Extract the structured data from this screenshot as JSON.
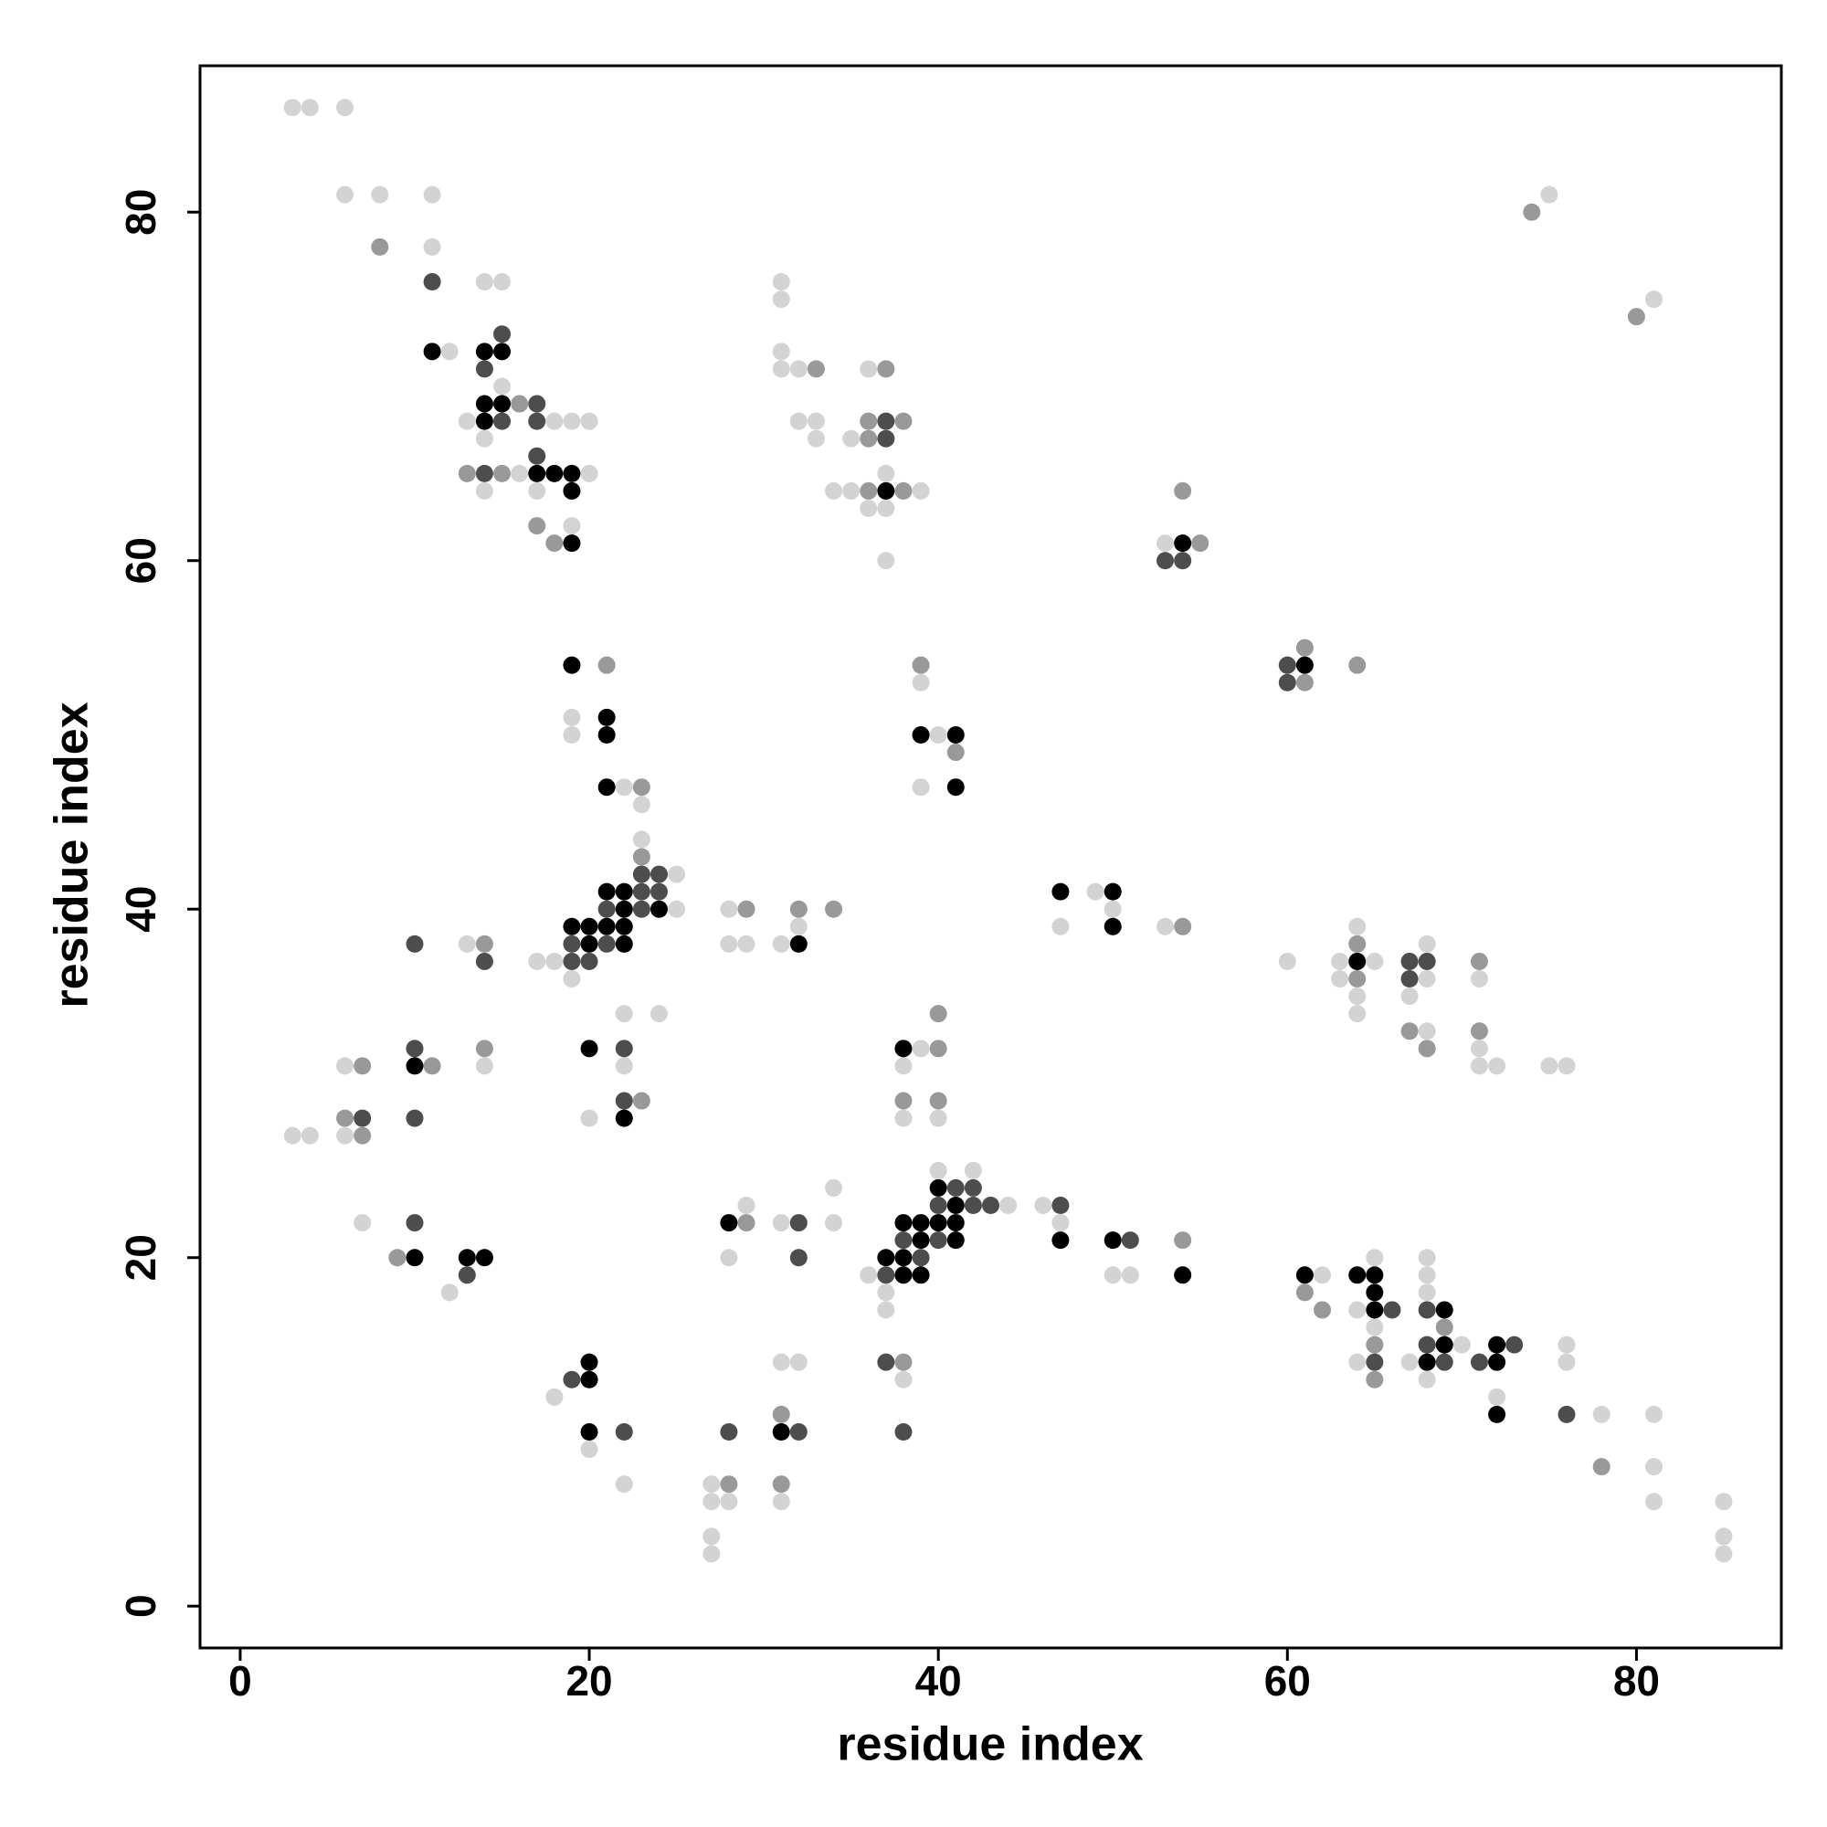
{
  "chart_data": {
    "type": "scatter",
    "xlabel": "residue index",
    "ylabel": "residue index",
    "xlim": [
      -2.3,
      88.3
    ],
    "ylim": [
      -2.4,
      88.4
    ],
    "xticks": [
      0,
      20,
      40,
      60,
      80
    ],
    "yticks": [
      0,
      20,
      40,
      60,
      80
    ],
    "series": [
      {
        "color": "#d3d3d3",
        "x": [
          3,
          4,
          6,
          6,
          8,
          11,
          11,
          14,
          15,
          12,
          15,
          13,
          18,
          19,
          20,
          14,
          16,
          20,
          14,
          17,
          19,
          31,
          31,
          31,
          31,
          32,
          36,
          32,
          33,
          33,
          35,
          37,
          34,
          35,
          39,
          36,
          37,
          37,
          53,
          75,
          81,
          19,
          19,
          22,
          23,
          23,
          25,
          25,
          17,
          18,
          19,
          13,
          28,
          32,
          28,
          29,
          31,
          22,
          24,
          6,
          14,
          22,
          20,
          3,
          4,
          6,
          39,
          40,
          39,
          39,
          38,
          38,
          40,
          49,
          50,
          47,
          53,
          64,
          68,
          60,
          63,
          65,
          63,
          68,
          71,
          64,
          67,
          64,
          68,
          71,
          71,
          72,
          75,
          76,
          40,
          42,
          44,
          46,
          47,
          36,
          50,
          51,
          37,
          37,
          34,
          29,
          7,
          31,
          34,
          28,
          12,
          31,
          32,
          38,
          18,
          20,
          22,
          27,
          27,
          28,
          31,
          27,
          27,
          65,
          68,
          62,
          68,
          68,
          64,
          65,
          70,
          76,
          64,
          67,
          76,
          68,
          72,
          78,
          81,
          81,
          81,
          85,
          85,
          85
        ],
        "y": [
          86,
          86,
          86,
          81,
          81,
          81,
          78,
          76,
          76,
          72,
          70,
          68,
          68,
          68,
          68,
          67,
          65,
          65,
          64,
          64,
          62,
          76,
          75,
          72,
          71,
          71,
          71,
          68,
          68,
          67,
          67,
          65,
          64,
          64,
          64,
          63,
          63,
          60,
          61,
          81,
          75,
          51,
          50,
          47,
          46,
          44,
          42,
          40,
          37,
          37,
          36,
          38,
          40,
          39,
          38,
          38,
          38,
          34,
          34,
          31,
          31,
          31,
          28,
          27,
          27,
          27,
          53,
          50,
          47,
          32,
          31,
          28,
          28,
          41,
          40,
          39,
          39,
          39,
          38,
          37,
          37,
          37,
          36,
          36,
          36,
          35,
          35,
          34,
          33,
          32,
          31,
          31,
          31,
          31,
          25,
          25,
          23,
          23,
          22,
          19,
          19,
          19,
          18,
          17,
          24,
          23,
          22,
          22,
          22,
          20,
          18,
          14,
          14,
          13,
          12,
          9,
          7,
          7,
          6,
          6,
          6,
          4,
          3,
          20,
          20,
          19,
          19,
          18,
          17,
          16,
          15,
          15,
          14,
          14,
          14,
          13,
          12,
          11,
          11,
          8,
          6,
          6,
          4,
          3
        ]
      },
      {
        "color": "#999999",
        "x": [
          8,
          16,
          13,
          15,
          17,
          18,
          33,
          37,
          36,
          38,
          36,
          36,
          38,
          54,
          55,
          61,
          64,
          61,
          74,
          80,
          21,
          23,
          23,
          14,
          29,
          32,
          34,
          14,
          7,
          11,
          23,
          6,
          7,
          39,
          41,
          40,
          40,
          38,
          40,
          54,
          64,
          71,
          64,
          67,
          71,
          68,
          29,
          9,
          38,
          31,
          28,
          31,
          54,
          61,
          62,
          69,
          65,
          65,
          78
        ],
        "y": [
          78,
          69,
          65,
          65,
          62,
          61,
          71,
          71,
          68,
          68,
          67,
          64,
          64,
          64,
          61,
          55,
          54,
          53,
          80,
          74,
          54,
          47,
          43,
          38,
          40,
          40,
          40,
          32,
          31,
          31,
          29,
          28,
          27,
          54,
          49,
          34,
          32,
          29,
          29,
          39,
          38,
          37,
          36,
          33,
          33,
          32,
          22,
          20,
          14,
          11,
          7,
          7,
          21,
          18,
          17,
          16,
          15,
          13,
          8
        ]
      },
      {
        "color": "#4d4d4d",
        "x": [
          11,
          15,
          14,
          17,
          15,
          17,
          17,
          14,
          37,
          37,
          53,
          54,
          60,
          60,
          23,
          24,
          23,
          24,
          21,
          23,
          19,
          21,
          19,
          20,
          10,
          14,
          10,
          22,
          22,
          10,
          7,
          67,
          68,
          67,
          41,
          42,
          40,
          42,
          43,
          47,
          38,
          40,
          51,
          39,
          37,
          10,
          32,
          32,
          13,
          37,
          19,
          22,
          28,
          32,
          38,
          66,
          68,
          68,
          73,
          65,
          69,
          71,
          76
        ],
        "y": [
          76,
          73,
          71,
          69,
          68,
          68,
          66,
          65,
          68,
          67,
          60,
          60,
          54,
          53,
          42,
          42,
          41,
          41,
          40,
          40,
          38,
          38,
          37,
          37,
          38,
          37,
          32,
          32,
          29,
          28,
          28,
          37,
          37,
          36,
          24,
          24,
          23,
          23,
          23,
          23,
          21,
          21,
          21,
          20,
          19,
          22,
          22,
          20,
          19,
          14,
          13,
          10,
          10,
          10,
          10,
          17,
          17,
          15,
          15,
          14,
          14,
          14,
          11
        ]
      },
      {
        "color": "#000000",
        "x": [
          11,
          14,
          15,
          14,
          15,
          14,
          17,
          18,
          19,
          19,
          19,
          37,
          54,
          61,
          19,
          21,
          21,
          21,
          21,
          22,
          22,
          24,
          19,
          20,
          21,
          22,
          20,
          22,
          32,
          20,
          10,
          22,
          39,
          41,
          41,
          38,
          47,
          50,
          50,
          64,
          40,
          41,
          38,
          39,
          40,
          41,
          39,
          41,
          47,
          50,
          37,
          38,
          38,
          39,
          54,
          28,
          10,
          13,
          14,
          20,
          20,
          20,
          31,
          61,
          64,
          65,
          65,
          65,
          69,
          69,
          72,
          68,
          72,
          72
        ],
        "y": [
          72,
          72,
          72,
          69,
          69,
          68,
          65,
          65,
          65,
          64,
          61,
          64,
          61,
          54,
          54,
          51,
          50,
          47,
          41,
          41,
          40,
          40,
          39,
          39,
          39,
          39,
          38,
          38,
          38,
          32,
          31,
          28,
          50,
          50,
          47,
          32,
          41,
          41,
          39,
          37,
          24,
          23,
          22,
          22,
          22,
          22,
          21,
          21,
          21,
          21,
          20,
          20,
          19,
          19,
          19,
          22,
          20,
          20,
          20,
          14,
          13,
          10,
          10,
          19,
          19,
          19,
          18,
          17,
          17,
          15,
          15,
          14,
          14,
          11
        ]
      }
    ]
  }
}
